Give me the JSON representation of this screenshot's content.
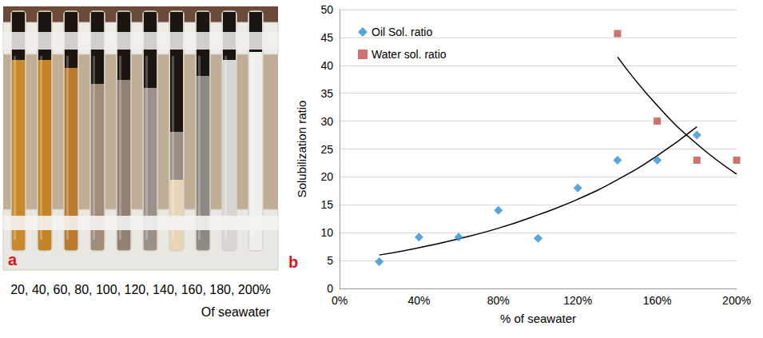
{
  "photo": {
    "letter": "a",
    "caption": [
      "20, 40, 60, 80, 100, 120, 140, 160, 180, 200%",
      "Of seawater"
    ]
  },
  "chart_data": {
    "type": "scatter",
    "panel_letter": "b",
    "x_label": "% of seawater",
    "y_label": "Solubilization ratio",
    "xlim": [
      0,
      200
    ],
    "xticks": [
      {
        "value": 0,
        "label": "0%"
      },
      {
        "value": 40,
        "label": "40%"
      },
      {
        "value": 80,
        "label": "80%"
      },
      {
        "value": 120,
        "label": "120%"
      },
      {
        "value": 160,
        "label": "160%"
      },
      {
        "value": 200,
        "label": "200%"
      }
    ],
    "ylim": [
      0,
      50
    ],
    "yticks": [
      0,
      5,
      10,
      15,
      20,
      25,
      30,
      35,
      40,
      45,
      50
    ],
    "grid": "y",
    "legend": "upper left",
    "series": [
      {
        "name": "Oil Sol. ratio",
        "color": "#2f8fd6",
        "marker": "diamond",
        "x": [
          20,
          40,
          60,
          80,
          100,
          120,
          140,
          160,
          180
        ],
        "values": [
          4.8,
          9.2,
          9.2,
          14,
          9,
          18,
          23,
          23,
          27.5
        ],
        "trend": {
          "color": "#000000",
          "x": [
            20,
            40,
            60,
            80,
            100,
            120,
            140,
            160,
            180
          ],
          "values": [
            6,
            7.3,
            8.9,
            10.8,
            13.2,
            16,
            19.5,
            23.8,
            29
          ]
        }
      },
      {
        "name": "Water sol. ratio",
        "color": "#c0504d",
        "marker": "square",
        "x": [
          140,
          160,
          180,
          200
        ],
        "values": [
          45.7,
          30,
          23,
          23
        ],
        "trend": {
          "color": "#000000",
          "x": [
            140,
            160,
            180,
            200
          ],
          "values": [
            41.5,
            32.8,
            25.9,
            20.5
          ]
        }
      }
    ]
  }
}
